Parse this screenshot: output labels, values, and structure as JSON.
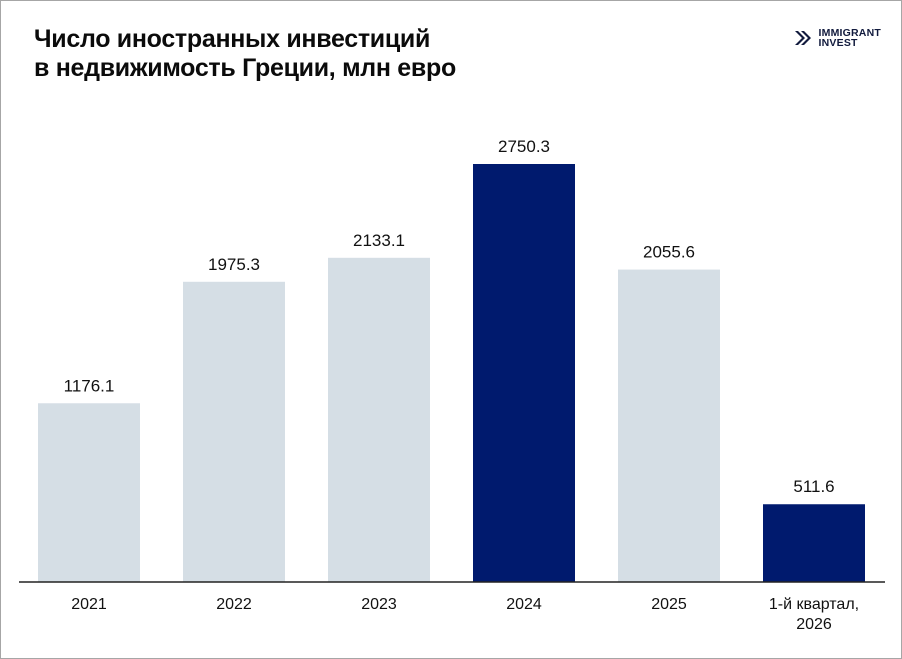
{
  "header": {
    "title_line1": "Число иностранных инвестиций",
    "title_line2": "в недвижимость Греции, млн евро"
  },
  "logo": {
    "line1": "IMMIGRANT",
    "line2": "INVEST",
    "icon": "double-chevron-logo-icon"
  },
  "chart_data": {
    "type": "bar",
    "title": "Число иностранных инвестиций в недвижимость Греции, млн евро",
    "categories": [
      [
        "2021"
      ],
      [
        "2022"
      ],
      [
        "2023"
      ],
      [
        "2024"
      ],
      [
        "2025"
      ],
      [
        "1-й квартал,",
        "2026"
      ]
    ],
    "values": [
      1176.1,
      1975.3,
      2133.1,
      2750.3,
      2055.6,
      511.6
    ],
    "labels": [
      "1176.1",
      "1975.3",
      "2133.1",
      "2750.3",
      "2055.6",
      "511.6"
    ],
    "highlighted": [
      false,
      false,
      false,
      true,
      false,
      true
    ],
    "colors": {
      "default": "#d5dee5",
      "highlight": "#001a6e",
      "axis": "#222222"
    },
    "ylim": [
      0,
      2750.3
    ],
    "grid": false,
    "legend": "none"
  }
}
